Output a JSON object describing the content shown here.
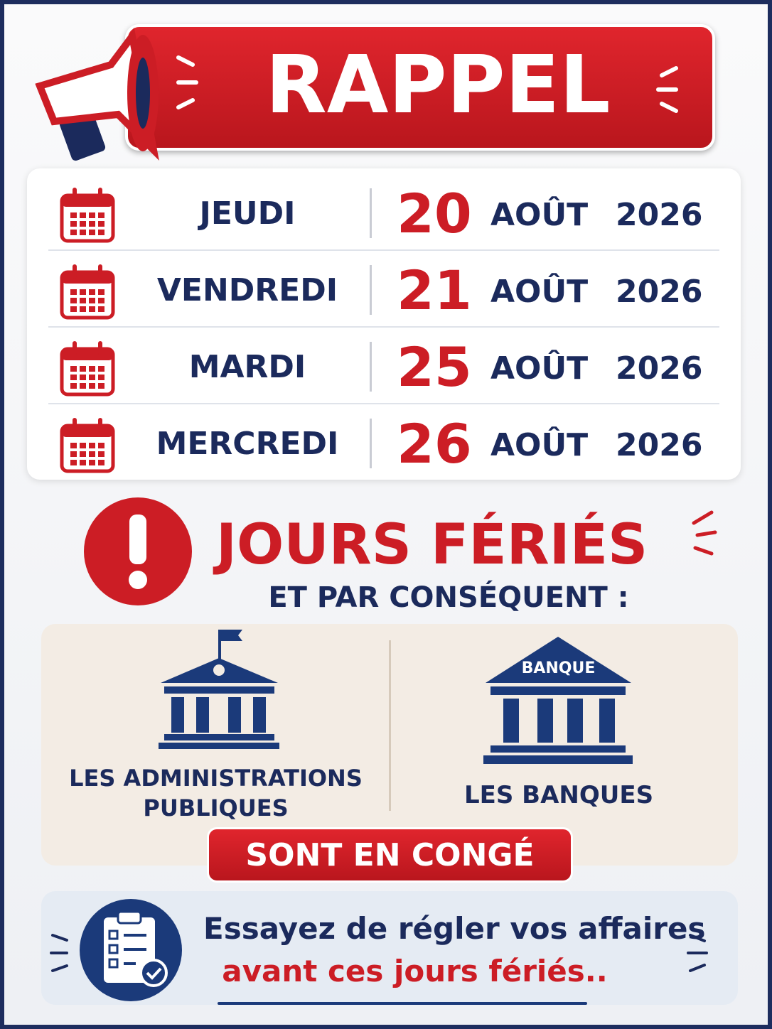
{
  "header": {
    "title": "RAPPEL"
  },
  "dates": [
    {
      "day": "JEUDI",
      "date": "20",
      "month": "AOÛT",
      "year": "2026"
    },
    {
      "day": "VENDREDI",
      "date": "21",
      "month": "AOÛT",
      "year": "2026"
    },
    {
      "day": "MARDI",
      "date": "25",
      "month": "AOÛT",
      "year": "2026"
    },
    {
      "day": "MERCREDI",
      "date": "26",
      "month": "AOÛT",
      "year": "2026"
    }
  ],
  "notice": {
    "title": "JOURS FÉRIÉS",
    "subtitle": "ET PAR CONSÉQUENT :"
  },
  "services": [
    {
      "label_lines": [
        "LES ADMINISTRATIONS",
        "PUBLIQUES"
      ]
    },
    {
      "sign": "BANQUE",
      "label_lines": [
        "LES BANQUES"
      ]
    }
  ],
  "status": "SONT EN CONGÉ",
  "footer": {
    "lines": [
      "Essayez de régler vos affaires",
      "avant ces jours fériés.."
    ]
  }
}
